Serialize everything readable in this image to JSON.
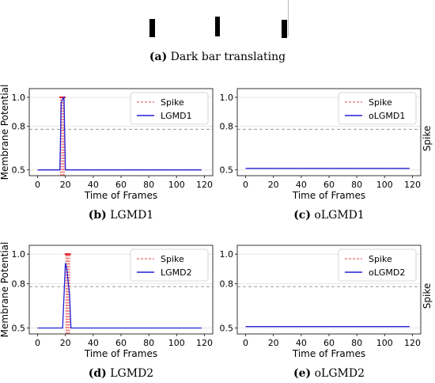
{
  "header": {
    "caption_letter": "(a)",
    "caption_text": "Dark bar translating"
  },
  "colors": {
    "spike": "#e8706a",
    "line": "#2020d8",
    "dashed": "#9a9a9a",
    "axis": "#222222",
    "grid": "#e6e6e6"
  },
  "chart_data": [
    {
      "id": "b",
      "type": "line",
      "caption_letter": "(b)",
      "caption_text": "LGMD1",
      "ylabel": "Membrane Potential",
      "xlabel": "Time of Frames",
      "xlim": [
        -6,
        126
      ],
      "ylim": [
        0.46,
        1.06
      ],
      "xticks": [
        0,
        20,
        40,
        60,
        80,
        100,
        120
      ],
      "yticks": [
        0.5,
        0.8,
        1.0
      ],
      "ytick_labels": [
        "0.5",
        "0.8",
        "1.0"
      ],
      "threshold": 0.78,
      "legend": [
        "Spike",
        "LGMD1"
      ],
      "legend_position": "top-right",
      "series": [
        {
          "name": "LGMD1",
          "x": [
            0,
            16,
            17,
            18,
            19,
            20,
            118
          ],
          "y": [
            0.5,
            0.5,
            0.96,
            0.99,
            1.0,
            0.5,
            0.5
          ]
        }
      ],
      "spikes": [
        16.5,
        17.2,
        18,
        18.6,
        19.2
      ],
      "spike_top": 1.0,
      "right_label": ""
    },
    {
      "id": "c",
      "type": "line",
      "caption_letter": "(c)",
      "caption_text": "oLGMD1",
      "ylabel": "",
      "xlabel": "Time of Frames",
      "xlim": [
        -6,
        126
      ],
      "ylim": [
        0.46,
        1.06
      ],
      "xticks": [
        0,
        20,
        40,
        60,
        80,
        100,
        120
      ],
      "yticks": [
        0.5,
        0.8,
        1.0
      ],
      "ytick_labels": [
        "0.5",
        "0.8",
        "1.0"
      ],
      "threshold": 0.78,
      "legend": [
        "Spike",
        "oLGMD1"
      ],
      "legend_position": "top-right",
      "series": [
        {
          "name": "oLGMD1",
          "x": [
            0,
            118
          ],
          "y": [
            0.51,
            0.51
          ]
        }
      ],
      "spikes": [],
      "spike_top": 1.0,
      "right_label": "Spike"
    },
    {
      "id": "d",
      "type": "line",
      "caption_letter": "(d)",
      "caption_text": "LGMD2",
      "ylabel": "Membrane Potential",
      "xlabel": "Time of Frames",
      "xlim": [
        -6,
        126
      ],
      "ylim": [
        0.46,
        1.06
      ],
      "xticks": [
        0,
        20,
        40,
        60,
        80,
        100,
        120
      ],
      "yticks": [
        0.5,
        0.8,
        1.0
      ],
      "ytick_labels": [
        "0.5",
        "0.8",
        "1.0"
      ],
      "threshold": 0.78,
      "legend": [
        "Spike",
        "LGMD2"
      ],
      "legend_position": "top-right",
      "series": [
        {
          "name": "LGMD2",
          "x": [
            0,
            18,
            20,
            21,
            23,
            24,
            25,
            118
          ],
          "y": [
            0.5,
            0.5,
            0.94,
            0.9,
            0.72,
            0.5,
            0.5,
            0.5
          ]
        }
      ],
      "spikes": [
        20.3,
        21,
        21.7,
        22.4,
        23.1
      ],
      "spike_top": 1.0,
      "right_label": ""
    },
    {
      "id": "e",
      "type": "line",
      "caption_letter": "(e)",
      "caption_text": "oLGMD2",
      "ylabel": "",
      "xlabel": "Time of Frames",
      "xlim": [
        -6,
        126
      ],
      "ylim": [
        0.46,
        1.06
      ],
      "xticks": [
        0,
        20,
        40,
        60,
        80,
        100,
        120
      ],
      "yticks": [
        0.5,
        0.8,
        1.0
      ],
      "ytick_labels": [
        "0.5",
        "0.8",
        "1.0"
      ],
      "threshold": 0.78,
      "legend": [
        "Spike",
        "oLGMD2"
      ],
      "legend_position": "top-right",
      "series": [
        {
          "name": "oLGMD2",
          "x": [
            0,
            118
          ],
          "y": [
            0.51,
            0.51
          ]
        }
      ],
      "spikes": [],
      "spike_top": 1.0,
      "right_label": "Spike"
    }
  ]
}
